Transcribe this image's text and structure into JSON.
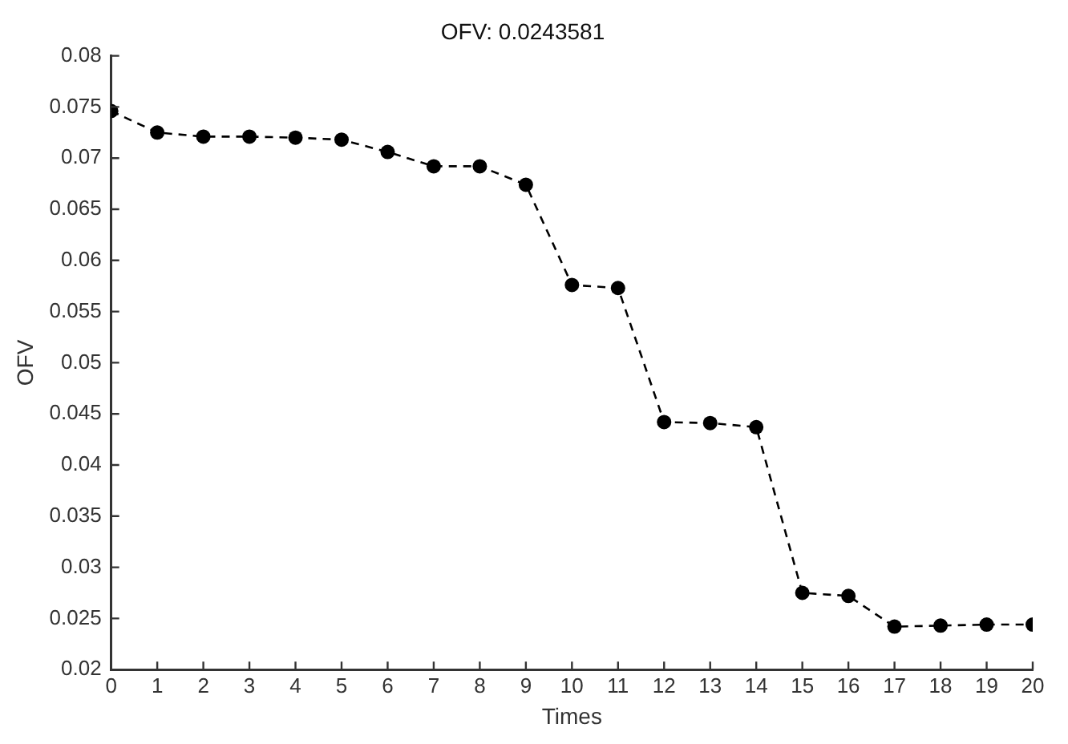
{
  "chart_data": {
    "type": "line",
    "title": "OFV: 0.0243581",
    "xlabel": "Times",
    "ylabel": "OFV",
    "x": [
      0,
      1,
      2,
      3,
      4,
      5,
      6,
      7,
      8,
      9,
      10,
      11,
      12,
      13,
      14,
      15,
      16,
      17,
      18,
      19,
      20
    ],
    "series": [
      {
        "color": "#000000",
        "values": [
          0.0746,
          0.0725,
          0.0721,
          0.0721,
          0.072,
          0.0718,
          0.0706,
          0.0692,
          0.0692,
          0.0674,
          0.0576,
          0.0573,
          0.0442,
          0.0441,
          0.0437,
          0.0275,
          0.0272,
          0.0242,
          0.0243,
          0.0244,
          0.0244
        ]
      }
    ],
    "xlim": [
      0,
      20
    ],
    "xticks": [
      0,
      1,
      2,
      3,
      4,
      5,
      6,
      7,
      8,
      9,
      10,
      11,
      12,
      13,
      14,
      15,
      16,
      17,
      18,
      19,
      20
    ],
    "ylim": [
      0.02,
      0.08
    ],
    "yticks": [
      0.02,
      0.025,
      0.03,
      0.035,
      0.04,
      0.045,
      0.05,
      0.055,
      0.06,
      0.065,
      0.07,
      0.075,
      0.08
    ],
    "grid": false,
    "legend": false,
    "marker": "circle",
    "line_style": "dashed"
  }
}
